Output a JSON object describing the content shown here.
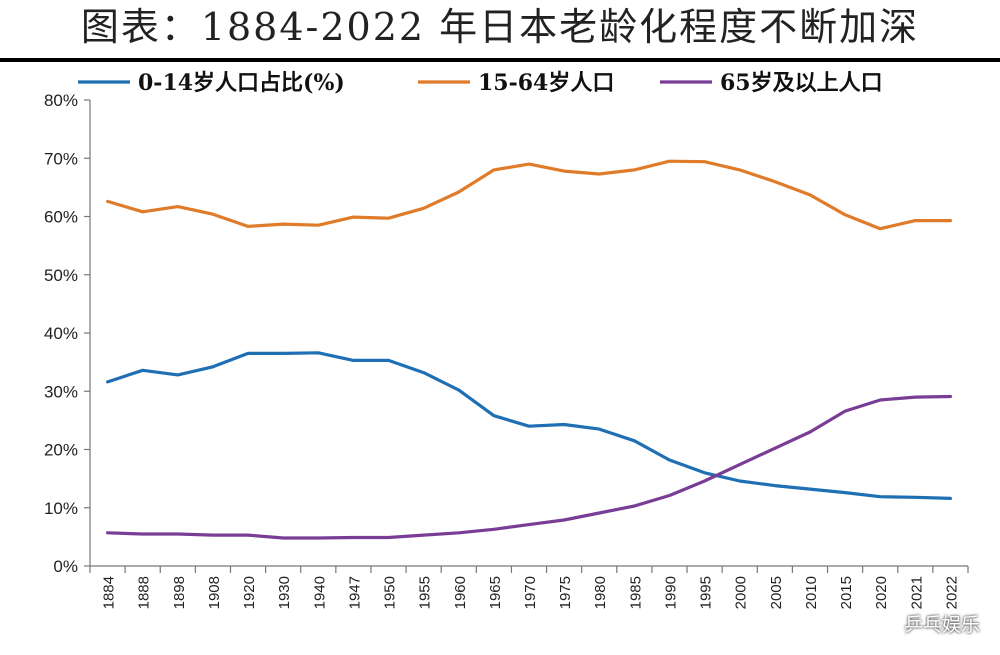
{
  "chart_data": {
    "type": "line",
    "title": "图表：1884-2022 年日本老龄化程度不断加深",
    "xlabel": "",
    "ylabel": "",
    "ylim": [
      0,
      80
    ],
    "yticks": [
      "0%",
      "10%",
      "20%",
      "30%",
      "40%",
      "50%",
      "60%",
      "70%",
      "80%"
    ],
    "grid": false,
    "legend_position": "top",
    "categories": [
      "1884",
      "1888",
      "1898",
      "1908",
      "1920",
      "1930",
      "1940",
      "1947",
      "1950",
      "1955",
      "1960",
      "1965",
      "1970",
      "1975",
      "1980",
      "1985",
      "1990",
      "1995",
      "2000",
      "2005",
      "2010",
      "2015",
      "2020",
      "2021",
      "2022"
    ],
    "series": [
      {
        "name": "0-14岁人口占比(%)",
        "color": "#1f6fb4",
        "values": [
          31.6,
          33.6,
          32.8,
          34.2,
          36.5,
          36.5,
          36.6,
          35.3,
          35.3,
          33.2,
          30.2,
          25.8,
          24.0,
          24.3,
          23.5,
          21.5,
          18.2,
          16.0,
          14.6,
          13.8,
          13.2,
          12.6,
          11.9,
          11.8,
          11.6
        ]
      },
      {
        "name": "15-64岁人口",
        "color": "#e07b2a",
        "values": [
          62.6,
          60.8,
          61.7,
          60.4,
          58.3,
          58.7,
          58.5,
          59.9,
          59.7,
          61.4,
          64.2,
          68.0,
          69.0,
          67.8,
          67.3,
          68.0,
          69.5,
          69.4,
          68.0,
          66.0,
          63.7,
          60.3,
          57.9,
          59.3,
          59.3
        ]
      },
      {
        "name": "65岁及以上人口",
        "color": "#7a3d96",
        "values": [
          5.7,
          5.5,
          5.5,
          5.3,
          5.3,
          4.8,
          4.8,
          4.9,
          4.9,
          5.3,
          5.7,
          6.3,
          7.1,
          7.9,
          9.1,
          10.3,
          12.1,
          14.6,
          17.4,
          20.2,
          23.0,
          26.6,
          28.5,
          29.0,
          29.1
        ]
      }
    ]
  },
  "watermark": "乒乓娱乐"
}
